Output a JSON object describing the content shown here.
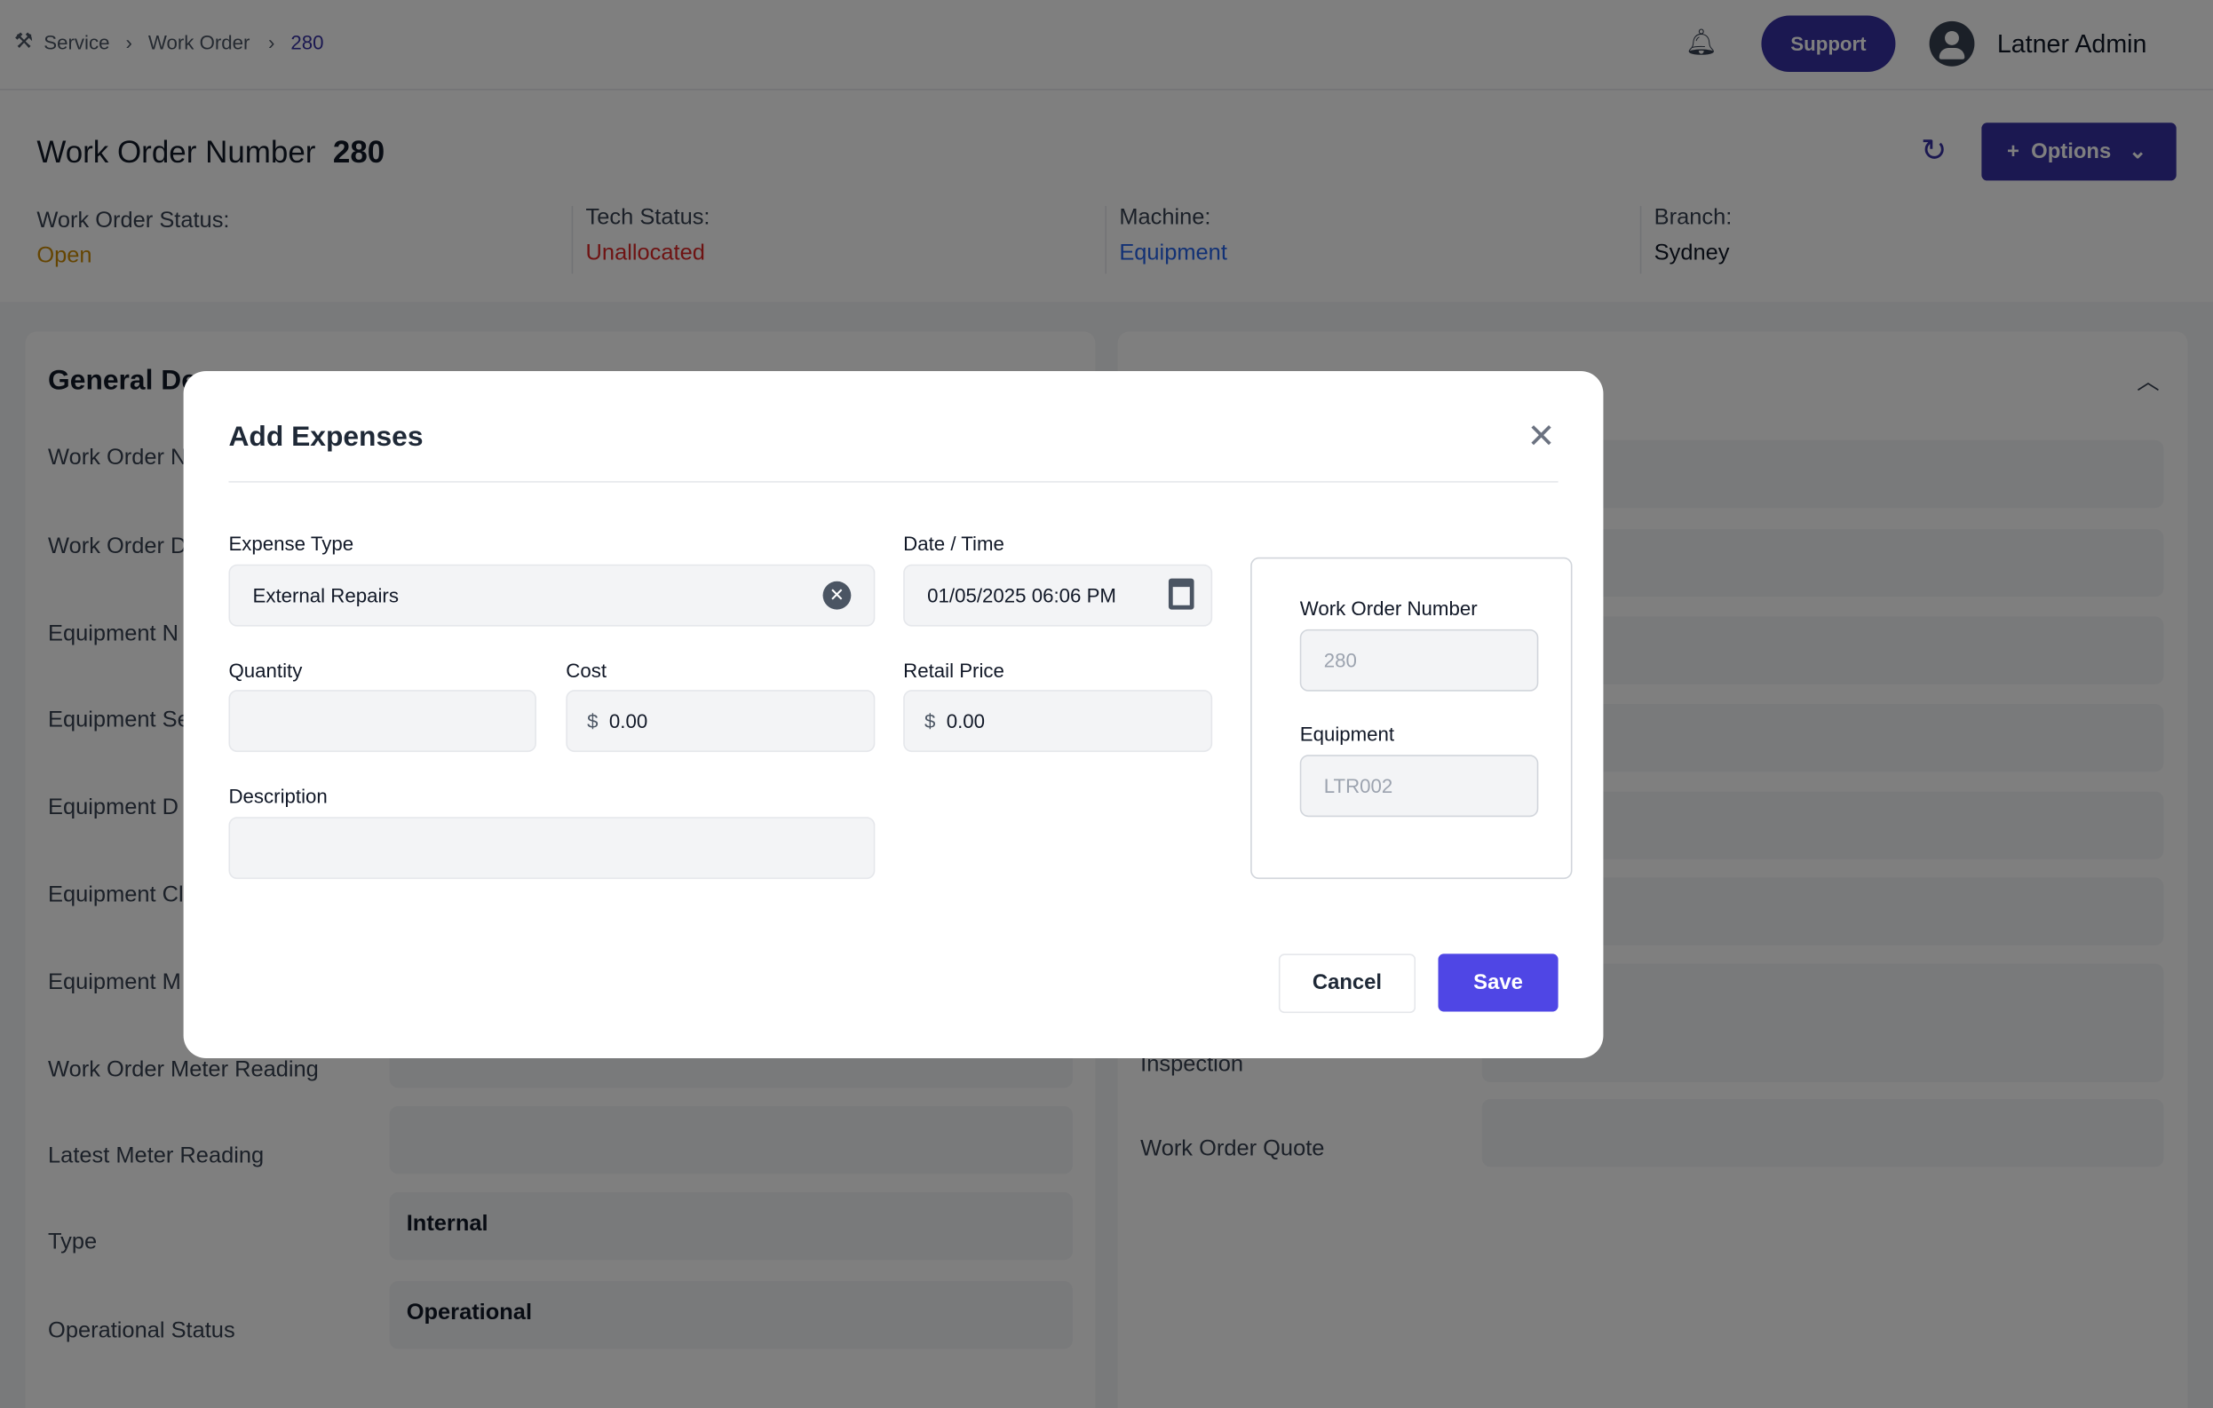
{
  "breadcrumb": {
    "items": [
      "Service",
      "Work Order",
      "280"
    ]
  },
  "topbar": {
    "support_label": "Support",
    "user_name": "Latner Admin"
  },
  "header": {
    "title": "Work Order Number",
    "number": "280",
    "options_label": "Options",
    "statuses": [
      {
        "label": "Work Order Status:",
        "value": "Open",
        "color": "#ca8a04"
      },
      {
        "label": "Tech Status:",
        "value": "Unallocated",
        "color": "#dc2626"
      },
      {
        "label": "Machine:",
        "value": "Equipment",
        "color": "#2563eb"
      },
      {
        "label": "Branch:",
        "value": "Sydney",
        "color": "#111827"
      }
    ]
  },
  "general": {
    "title": "General De",
    "rows": [
      {
        "label": "Work Order N",
        "value": ""
      },
      {
        "label": "Work Order D",
        "value": ""
      },
      {
        "label": "Equipment N",
        "value": ""
      },
      {
        "label": "Equipment Se",
        "value": ""
      },
      {
        "label": "Equipment D",
        "value": ""
      },
      {
        "label": "Equipment Cl",
        "value": ""
      },
      {
        "label": "Equipment M",
        "value": ""
      },
      {
        "label": "Work Order Meter Reading",
        "value": ""
      },
      {
        "label": "Latest Meter Reading",
        "value": ""
      },
      {
        "label": "Type",
        "value": "Internal"
      },
      {
        "label": "Operational Status",
        "value": "Operational"
      }
    ]
  },
  "right_panel": {
    "rows": [
      {
        "label": "Inspection"
      },
      {
        "label": "Work Order Quote"
      }
    ]
  },
  "modal": {
    "title": "Add Expenses",
    "expense_type": {
      "label": "Expense Type",
      "value": "External Repairs"
    },
    "datetime": {
      "label": "Date / Time",
      "value": "01/05/2025 06:06 PM"
    },
    "quantity": {
      "label": "Quantity",
      "value": ""
    },
    "cost": {
      "label": "Cost",
      "currency": "$",
      "value": "0.00"
    },
    "retail": {
      "label": "Retail Price",
      "currency": "$",
      "value": "0.00"
    },
    "description": {
      "label": "Description",
      "value": ""
    },
    "wo_number": {
      "label": "Work Order Number",
      "value": "280"
    },
    "equipment": {
      "label": "Equipment",
      "value": "LTR002"
    },
    "cancel_label": "Cancel",
    "save_label": "Save"
  },
  "colors": {
    "accent": "#4f46e5",
    "brand_dark": "#3730a3"
  }
}
